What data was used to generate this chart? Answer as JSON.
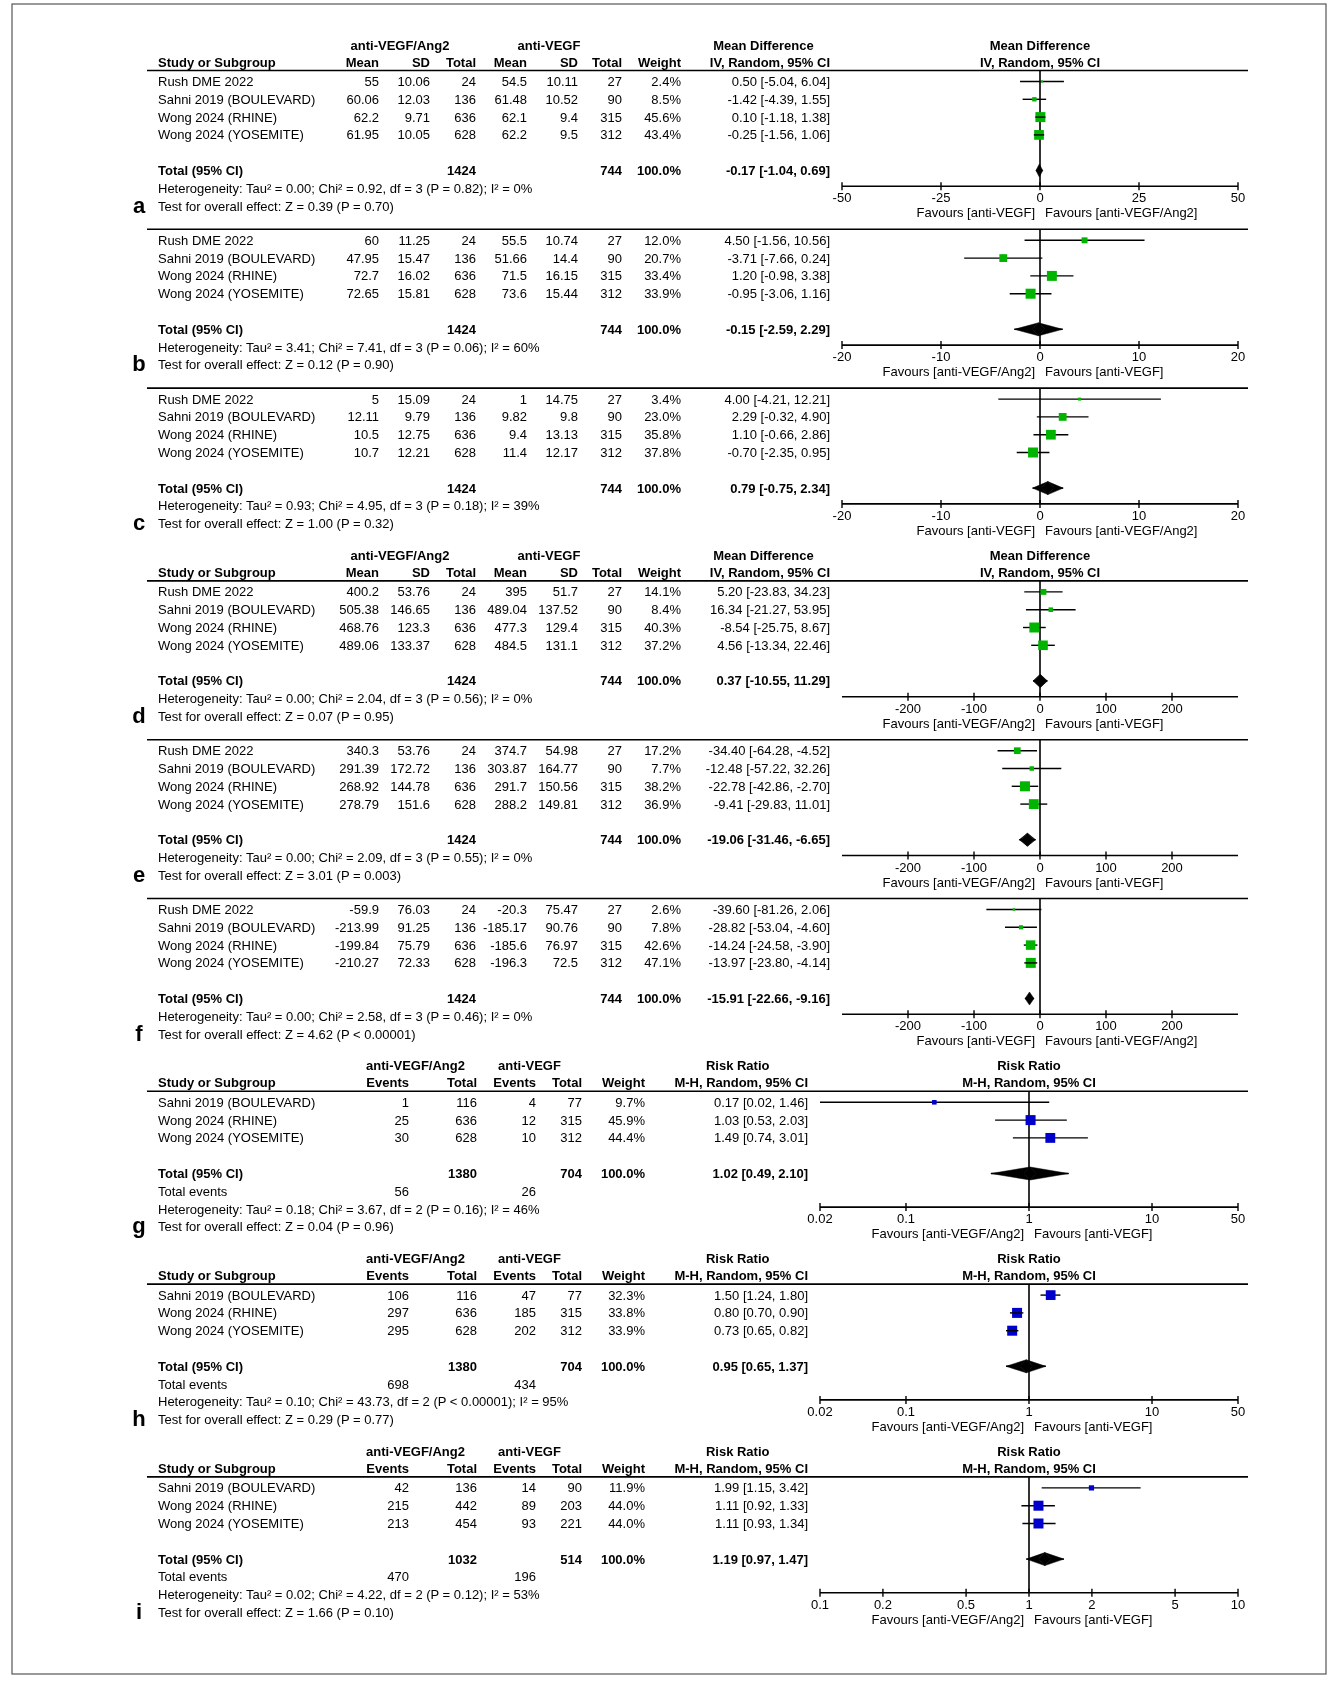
{
  "chart_data": [
    {
      "type": "other",
      "title": "a",
      "ylabel": "Study or Subgroup",
      "data_labels": true,
      "categories": [
        "Rush DME 2022",
        "Sahni 2019 (BOULEVARD)",
        "Wong 2024 (RHINE)",
        "Wong 2024 (YOSEMITE)",
        null,
        "Total (95% CI)"
      ],
      "annotations": [
        "anti-VEGF/Ang2",
        "anti-VEGF",
        "Mean Difference",
        "Heterogeneity: Tau² = 0.00; Chi² = 0.92, df = 3 (P = 0.82); I² = 0%",
        "Test for overall effect: Z = 0.39 (P = 0.70)"
      ],
      "series": [
        {
          "name": "Mean",
          "values": [
            55,
            60.06,
            62.2,
            61.95,
            null,
            null
          ]
        },
        {
          "name": "SD",
          "values": [
            10.06,
            12.03,
            9.71,
            10.05,
            null,
            null
          ]
        },
        {
          "name": "Total",
          "values": [
            24,
            136,
            636,
            628,
            null,
            1424
          ]
        },
        {
          "name": "Mean",
          "values": [
            54.5,
            61.48,
            62.1,
            62.2,
            null,
            null
          ]
        },
        {
          "name": "SD",
          "values": [
            10.11,
            10.52,
            9.4,
            9.5,
            null,
            null
          ]
        },
        {
          "name": "Total",
          "values": [
            27,
            90,
            315,
            312,
            null,
            744
          ]
        },
        {
          "name": "Weight",
          "values": [
            2.4,
            8.5,
            45.6,
            43.4,
            null,
            100
          ],
          "value_labels": [
            "2.4%",
            "8.5%",
            "45.6%",
            "43.4%",
            null,
            "100.0%"
          ]
        },
        {
          "name": "IV, Random, 95% CI",
          "values": [
            0.5,
            -1.42,
            0.1,
            -0.25,
            null,
            -0.17
          ],
          "value_labels": [
            "0.50 [-5.04, 6.04]",
            "-1.42 [-4.39, 1.55]",
            "0.10 [-1.18, 1.38]",
            "-0.25 [-1.56, 1.06]",
            null,
            "-0.17 [-1.04, 0.69]"
          ]
        }
      ]
    },
    {
      "type": "scatter",
      "orientation": "horizontal",
      "title": "Mean Difference",
      "subtitle": "IV, Random, 95% CI",
      "categories": [
        null,
        null,
        null,
        null,
        null,
        null
      ],
      "tick_labels": "x",
      "xlim": [
        -50,
        50
      ],
      "xticks": [
        -50,
        -25,
        0,
        25,
        50
      ],
      "ref_lines": [
        {
          "axis": "x",
          "value": 0
        }
      ],
      "annotations": [
        "Favours [anti-VEGF]",
        "Favours [anti-VEGF/Ang2]"
      ],
      "series": [
        {
          "type": "bubble",
          "marker": "square",
          "color": "#00b400",
          "values": [
            0.5,
            -1.42,
            0.1,
            -0.25,
            null,
            null
          ],
          "errors": [
            [
              -5.04,
              6.04
            ],
            [
              -4.39,
              1.55
            ],
            [
              -1.18,
              1.38
            ],
            [
              -1.56,
              1.06
            ],
            null,
            null
          ],
          "sizes": [
            0.05,
            0.19,
            1,
            0.95,
            null,
            null
          ]
        },
        {
          "type": "scatter",
          "marker": "diamond",
          "color": "#000000",
          "values": [
            null,
            null,
            null,
            null,
            null,
            -0.17
          ],
          "errors": [
            null,
            null,
            null,
            null,
            null,
            [
              -1.04,
              0.69
            ]
          ]
        }
      ]
    },
    {
      "type": "other",
      "title": "b",
      "data_labels": true,
      "categories": [
        "Rush DME 2022",
        "Sahni 2019 (BOULEVARD)",
        "Wong 2024 (RHINE)",
        "Wong 2024 (YOSEMITE)",
        null,
        "Total (95% CI)"
      ],
      "annotations": [
        "Heterogeneity: Tau² = 3.41; Chi² = 7.41, df = 3 (P = 0.06); I² = 60%",
        "Test for overall effect: Z = 0.12 (P = 0.90)"
      ],
      "series": [
        {
          "values": [
            60,
            47.95,
            72.7,
            72.65,
            null,
            null
          ]
        },
        {
          "values": [
            11.25,
            15.47,
            16.02,
            15.81,
            null,
            null
          ]
        },
        {
          "values": [
            24,
            136,
            636,
            628,
            null,
            1424
          ]
        },
        {
          "values": [
            55.5,
            51.66,
            71.5,
            73.6,
            null,
            null
          ]
        },
        {
          "values": [
            10.74,
            14.4,
            16.15,
            15.44,
            null,
            null
          ]
        },
        {
          "values": [
            27,
            90,
            315,
            312,
            null,
            744
          ]
        },
        {
          "values": [
            12,
            20.7,
            33.4,
            33.9,
            null,
            100
          ],
          "value_labels": [
            "12.0%",
            "20.7%",
            "33.4%",
            "33.9%",
            null,
            "100.0%"
          ]
        },
        {
          "values": [
            4.5,
            -3.71,
            1.2,
            -0.95,
            null,
            -0.15
          ],
          "value_labels": [
            "4.50 [-1.56, 10.56]",
            "-3.71 [-7.66, 0.24]",
            "1.20 [-0.98, 3.38]",
            "-0.95 [-3.06, 1.16]",
            null,
            "-0.15 [-2.59, 2.29]"
          ]
        }
      ]
    },
    {
      "type": "scatter",
      "orientation": "horizontal",
      "categories": [
        null,
        null,
        null,
        null,
        null,
        null
      ],
      "tick_labels": "x",
      "xlim": [
        -20,
        20
      ],
      "xticks": [
        -20,
        -10,
        0,
        10,
        20
      ],
      "ref_lines": [
        {
          "axis": "x",
          "value": 0
        }
      ],
      "annotations": [
        "Favours [anti-VEGF/Ang2]",
        "Favours [anti-VEGF]"
      ],
      "series": [
        {
          "type": "bubble",
          "marker": "square",
          "color": "#00b400",
          "values": [
            4.5,
            -3.71,
            1.2,
            -0.95,
            null,
            null
          ],
          "errors": [
            [
              -1.56,
              10.56
            ],
            [
              -7.66,
              0.24
            ],
            [
              -0.98,
              3.38
            ],
            [
              -3.06,
              1.16
            ],
            null,
            null
          ],
          "sizes": [
            0.35,
            0.61,
            0.99,
            1,
            null,
            null
          ]
        },
        {
          "type": "scatter",
          "marker": "diamond",
          "color": "#000000",
          "values": [
            null,
            null,
            null,
            null,
            null,
            -0.15
          ],
          "errors": [
            null,
            null,
            null,
            null,
            null,
            [
              -2.59,
              2.29
            ]
          ]
        }
      ]
    },
    {
      "type": "other",
      "title": "c",
      "data_labels": true,
      "categories": [
        "Rush DME 2022",
        "Sahni 2019 (BOULEVARD)",
        "Wong 2024 (RHINE)",
        "Wong 2024 (YOSEMITE)",
        null,
        "Total (95% CI)"
      ],
      "annotations": [
        "Heterogeneity: Tau² = 0.93; Chi² = 4.95, df = 3 (P = 0.18); I² = 39%",
        "Test for overall effect: Z = 1.00 (P = 0.32)"
      ],
      "series": [
        {
          "values": [
            5,
            12.11,
            10.5,
            10.7,
            null,
            null
          ]
        },
        {
          "values": [
            15.09,
            9.79,
            12.75,
            12.21,
            null,
            null
          ]
        },
        {
          "values": [
            24,
            136,
            636,
            628,
            null,
            1424
          ]
        },
        {
          "values": [
            1,
            9.82,
            9.4,
            11.4,
            null,
            null
          ]
        },
        {
          "values": [
            14.75,
            9.8,
            13.13,
            12.17,
            null,
            null
          ]
        },
        {
          "values": [
            27,
            90,
            315,
            312,
            null,
            744
          ]
        },
        {
          "values": [
            3.4,
            23,
            35.8,
            37.8,
            null,
            100
          ],
          "value_labels": [
            "3.4%",
            "23.0%",
            "35.8%",
            "37.8%",
            null,
            "100.0%"
          ]
        },
        {
          "values": [
            4,
            2.29,
            1.1,
            -0.7,
            null,
            0.79
          ],
          "value_labels": [
            "4.00 [-4.21, 12.21]",
            "2.29 [-0.32, 4.90]",
            "1.10 [-0.66, 2.86]",
            "-0.70 [-2.35, 0.95]",
            null,
            "0.79 [-0.75, 2.34]"
          ]
        }
      ]
    },
    {
      "type": "scatter",
      "orientation": "horizontal",
      "categories": [
        null,
        null,
        null,
        null,
        null,
        null
      ],
      "tick_labels": "x",
      "xlim": [
        -20,
        20
      ],
      "xticks": [
        -20,
        -10,
        0,
        10,
        20
      ],
      "ref_lines": [
        {
          "axis": "x",
          "value": 0
        }
      ],
      "annotations": [
        "Favours [anti-VEGF]",
        "Favours [anti-VEGF/Ang2]"
      ],
      "series": [
        {
          "type": "bubble",
          "marker": "square",
          "color": "#00b400",
          "values": [
            4,
            2.29,
            1.1,
            -0.7,
            null,
            null
          ],
          "errors": [
            [
              -4.21,
              12.21
            ],
            [
              -0.32,
              4.9
            ],
            [
              -0.66,
              2.86
            ],
            [
              -2.35,
              0.95
            ],
            null,
            null
          ],
          "sizes": [
            0.09,
            0.61,
            0.95,
            1,
            null,
            null
          ]
        },
        {
          "type": "scatter",
          "marker": "diamond",
          "color": "#000000",
          "values": [
            null,
            null,
            null,
            null,
            null,
            0.79
          ],
          "errors": [
            null,
            null,
            null,
            null,
            null,
            [
              -0.75,
              2.34
            ]
          ]
        }
      ]
    },
    {
      "type": "other",
      "title": "d",
      "ylabel": "Study or Subgroup",
      "data_labels": true,
      "categories": [
        "Rush DME 2022",
        "Sahni 2019 (BOULEVARD)",
        "Wong 2024 (RHINE)",
        "Wong 2024 (YOSEMITE)",
        null,
        "Total (95% CI)"
      ],
      "annotations": [
        "anti-VEGF/Ang2",
        "anti-VEGF",
        "Mean Difference",
        "Heterogeneity: Tau² = 0.00; Chi² = 2.04, df = 3 (P = 0.56); I² = 0%",
        "Test for overall effect: Z = 0.07 (P = 0.95)"
      ],
      "series": [
        {
          "name": "Mean",
          "values": [
            400.2,
            505.38,
            468.76,
            489.06,
            null,
            null
          ]
        },
        {
          "name": "SD",
          "values": [
            53.76,
            146.65,
            123.3,
            133.37,
            null,
            null
          ]
        },
        {
          "name": "Total",
          "values": [
            24,
            136,
            636,
            628,
            null,
            1424
          ]
        },
        {
          "name": "Mean",
          "values": [
            395,
            489.04,
            477.3,
            484.5,
            null,
            null
          ]
        },
        {
          "name": "SD",
          "values": [
            51.7,
            137.52,
            129.4,
            131.1,
            null,
            null
          ]
        },
        {
          "name": "Total",
          "values": [
            27,
            90,
            315,
            312,
            null,
            744
          ]
        },
        {
          "name": "Weight",
          "values": [
            14.1,
            8.4,
            40.3,
            37.2,
            null,
            100
          ],
          "value_labels": [
            "14.1%",
            "8.4%",
            "40.3%",
            "37.2%",
            null,
            "100.0%"
          ]
        },
        {
          "name": "IV, Random, 95% CI",
          "values": [
            5.2,
            16.34,
            -8.54,
            4.56,
            null,
            0.37
          ],
          "value_labels": [
            "5.20 [-23.83, 34.23]",
            "16.34 [-21.27, 53.95]",
            "-8.54 [-25.75, 8.67]",
            "4.56 [-13.34, 22.46]",
            null,
            "0.37 [-10.55, 11.29]"
          ]
        }
      ]
    },
    {
      "type": "scatter",
      "orientation": "horizontal",
      "title": "Mean Difference",
      "subtitle": "IV, Random, 95% CI",
      "categories": [
        null,
        null,
        null,
        null,
        null,
        null
      ],
      "tick_labels": "x",
      "xlim": [
        -300,
        300
      ],
      "xticks": [
        -200,
        -100,
        0,
        100,
        200
      ],
      "ref_lines": [
        {
          "axis": "x",
          "value": 0
        }
      ],
      "annotations": [
        "Favours [anti-VEGF/Ang2]",
        "Favours [anti-VEGF]"
      ],
      "series": [
        {
          "type": "bubble",
          "marker": "square",
          "color": "#00b400",
          "values": [
            5.2,
            16.34,
            -8.54,
            4.56,
            null,
            null
          ],
          "errors": [
            [
              -23.83,
              34.23
            ],
            [
              -21.27,
              53.95
            ],
            [
              -25.75,
              8.67
            ],
            [
              -13.34,
              22.46
            ],
            null,
            null
          ],
          "sizes": [
            0.35,
            0.21,
            1,
            0.92,
            null,
            null
          ]
        },
        {
          "type": "scatter",
          "marker": "diamond",
          "color": "#000000",
          "values": [
            null,
            null,
            null,
            null,
            null,
            0.37
          ],
          "errors": [
            null,
            null,
            null,
            null,
            null,
            [
              -10.55,
              11.29
            ]
          ]
        }
      ]
    },
    {
      "type": "other",
      "title": "e",
      "data_labels": true,
      "categories": [
        "Rush DME 2022",
        "Sahni 2019 (BOULEVARD)",
        "Wong 2024 (RHINE)",
        "Wong 2024 (YOSEMITE)",
        null,
        "Total (95% CI)"
      ],
      "annotations": [
        "Heterogeneity: Tau² = 0.00; Chi² = 2.09, df = 3 (P = 0.55); I² = 0%",
        "Test for overall effect: Z = 3.01 (P = 0.003)"
      ],
      "series": [
        {
          "values": [
            340.3,
            291.39,
            268.92,
            278.79,
            null,
            null
          ]
        },
        {
          "values": [
            53.76,
            172.72,
            144.78,
            151.6,
            null,
            null
          ]
        },
        {
          "values": [
            24,
            136,
            636,
            628,
            null,
            1424
          ]
        },
        {
          "values": [
            374.7,
            303.87,
            291.7,
            288.2,
            null,
            null
          ]
        },
        {
          "values": [
            54.98,
            164.77,
            150.56,
            149.81,
            null,
            null
          ]
        },
        {
          "values": [
            27,
            90,
            315,
            312,
            null,
            744
          ]
        },
        {
          "values": [
            17.2,
            7.7,
            38.2,
            36.9,
            null,
            100
          ],
          "value_labels": [
            "17.2%",
            "7.7%",
            "38.2%",
            "36.9%",
            null,
            "100.0%"
          ]
        },
        {
          "values": [
            -34.4,
            -12.48,
            -22.78,
            -9.41,
            null,
            -19.06
          ],
          "value_labels": [
            "-34.40 [-64.28, -4.52]",
            "-12.48 [-57.22, 32.26]",
            "-22.78 [-42.86, -2.70]",
            "-9.41 [-29.83, 11.01]",
            null,
            "-19.06 [-31.46, -6.65]"
          ]
        }
      ]
    },
    {
      "type": "scatter",
      "orientation": "horizontal",
      "categories": [
        null,
        null,
        null,
        null,
        null,
        null
      ],
      "tick_labels": "x",
      "xlim": [
        -300,
        300
      ],
      "xticks": [
        -200,
        -100,
        0,
        100,
        200
      ],
      "ref_lines": [
        {
          "axis": "x",
          "value": 0
        }
      ],
      "annotations": [
        "Favours [anti-VEGF/Ang2]",
        "Favours [anti-VEGF]"
      ],
      "series": [
        {
          "type": "bubble",
          "marker": "square",
          "color": "#00b400",
          "values": [
            -34.4,
            -12.48,
            -22.78,
            -9.41,
            null,
            null
          ],
          "errors": [
            [
              -64.28,
              -4.52
            ],
            [
              -57.22,
              32.26
            ],
            [
              -42.86,
              -2.7
            ],
            [
              -29.83,
              11.01
            ],
            null,
            null
          ],
          "sizes": [
            0.45,
            0.2,
            1,
            0.97,
            null,
            null
          ]
        },
        {
          "type": "scatter",
          "marker": "diamond",
          "color": "#000000",
          "values": [
            null,
            null,
            null,
            null,
            null,
            -19.06
          ],
          "errors": [
            null,
            null,
            null,
            null,
            null,
            [
              -31.46,
              -6.65
            ]
          ]
        }
      ]
    },
    {
      "type": "other",
      "title": "f",
      "data_labels": true,
      "categories": [
        "Rush DME 2022",
        "Sahni 2019 (BOULEVARD)",
        "Wong 2024 (RHINE)",
        "Wong 2024 (YOSEMITE)",
        null,
        "Total (95% CI)"
      ],
      "annotations": [
        "Heterogeneity: Tau² = 0.00; Chi² = 2.58, df = 3 (P = 0.46); I² = 0%",
        "Test for overall effect: Z = 4.62 (P < 0.00001)"
      ],
      "series": [
        {
          "values": [
            -59.9,
            -213.99,
            -199.84,
            -210.27,
            null,
            null
          ]
        },
        {
          "values": [
            76.03,
            91.25,
            75.79,
            72.33,
            null,
            null
          ]
        },
        {
          "values": [
            24,
            136,
            636,
            628,
            null,
            1424
          ]
        },
        {
          "values": [
            -20.3,
            -185.17,
            -185.6,
            -196.3,
            null,
            null
          ]
        },
        {
          "values": [
            75.47,
            90.76,
            76.97,
            72.5,
            null,
            null
          ]
        },
        {
          "values": [
            27,
            90,
            315,
            312,
            null,
            744
          ]
        },
        {
          "values": [
            2.6,
            7.8,
            42.6,
            47.1,
            null,
            100
          ],
          "value_labels": [
            "2.6%",
            "7.8%",
            "42.6%",
            "47.1%",
            null,
            "100.0%"
          ]
        },
        {
          "values": [
            -39.6,
            -28.82,
            -14.24,
            -13.97,
            null,
            -15.91
          ],
          "value_labels": [
            "-39.60 [-81.26, 2.06]",
            "-28.82 [-53.04, -4.60]",
            "-14.24 [-24.58, -3.90]",
            "-13.97 [-23.80, -4.14]",
            null,
            "-15.91 [-22.66, -9.16]"
          ]
        }
      ]
    },
    {
      "type": "scatter",
      "orientation": "horizontal",
      "categories": [
        null,
        null,
        null,
        null,
        null,
        null
      ],
      "tick_labels": "x",
      "xlim": [
        -300,
        300
      ],
      "xticks": [
        -200,
        -100,
        0,
        100,
        200
      ],
      "ref_lines": [
        {
          "axis": "x",
          "value": 0
        }
      ],
      "annotations": [
        "Favours [anti-VEGF]",
        "Favours [anti-VEGF/Ang2]"
      ],
      "series": [
        {
          "type": "bubble",
          "marker": "square",
          "color": "#00b400",
          "values": [
            -39.6,
            -28.82,
            -14.24,
            -13.97,
            null,
            null
          ],
          "errors": [
            [
              -81.26,
              2.06
            ],
            [
              -53.04,
              -4.6
            ],
            [
              -24.58,
              -3.9
            ],
            [
              -23.8,
              -4.14
            ],
            null,
            null
          ],
          "sizes": [
            0.06,
            0.17,
            0.9,
            1,
            null,
            null
          ]
        },
        {
          "type": "scatter",
          "marker": "diamond",
          "color": "#000000",
          "values": [
            null,
            null,
            null,
            null,
            null,
            -15.91
          ],
          "errors": [
            null,
            null,
            null,
            null,
            null,
            [
              -22.66,
              -9.16
            ]
          ]
        }
      ]
    },
    {
      "type": "other",
      "title": "g",
      "ylabel": "Study or Subgroup",
      "data_labels": true,
      "categories": [
        "Sahni 2019 (BOULEVARD)",
        "Wong 2024 (RHINE)",
        "Wong 2024 (YOSEMITE)",
        null,
        "Total (95% CI)",
        "Total events"
      ],
      "annotations": [
        "anti-VEGF/Ang2",
        "anti-VEGF",
        "Risk Ratio",
        "Heterogeneity: Tau² = 0.18; Chi² = 3.67, df = 2 (P = 0.16); I² = 46%",
        "Test for overall effect: Z = 0.04 (P = 0.96)"
      ],
      "series": [
        {
          "name": "Events",
          "values": [
            1,
            25,
            30,
            null,
            null,
            56
          ]
        },
        {
          "name": "Total",
          "values": [
            116,
            636,
            628,
            null,
            1380,
            null
          ]
        },
        {
          "name": "Events",
          "values": [
            4,
            12,
            10,
            null,
            null,
            26
          ]
        },
        {
          "name": "Total",
          "values": [
            77,
            315,
            312,
            null,
            704,
            null
          ]
        },
        {
          "name": "Weight",
          "values": [
            9.7,
            45.9,
            44.4,
            null,
            100,
            null
          ],
          "value_labels": [
            "9.7%",
            "45.9%",
            "44.4%",
            null,
            "100.0%",
            null
          ]
        },
        {
          "name": "M-H, Random, 95% CI",
          "values": [
            0.17,
            1.03,
            1.49,
            null,
            1.02,
            null
          ],
          "value_labels": [
            "0.17 [0.02, 1.46]",
            "1.03 [0.53, 2.03]",
            "1.49 [0.74, 3.01]",
            null,
            "1.02 [0.49, 2.10]",
            null
          ]
        }
      ]
    },
    {
      "type": "scatter",
      "orientation": "horizontal",
      "title": "Risk Ratio",
      "subtitle": "M-H, Random, 95% CI",
      "categories": [
        null,
        null,
        null,
        null,
        null,
        null
      ],
      "tick_labels": "x",
      "log": "x",
      "xlim": [
        0.02,
        50
      ],
      "xticks": [
        0.02,
        0.1,
        1,
        10,
        50
      ],
      "ref_lines": [
        {
          "axis": "x",
          "value": 1
        }
      ],
      "annotations": [
        "Favours [anti-VEGF/Ang2]",
        "Favours [anti-VEGF]"
      ],
      "series": [
        {
          "type": "bubble",
          "marker": "square",
          "color": "#0000cc",
          "values": [
            0.17,
            1.03,
            1.49,
            null,
            null,
            null
          ],
          "errors": [
            [
              0.02,
              1.46
            ],
            [
              0.53,
              2.03
            ],
            [
              0.74,
              3.01
            ],
            null,
            null,
            null
          ],
          "sizes": [
            0.21,
            1,
            0.97,
            null,
            null,
            null
          ]
        },
        {
          "type": "scatter",
          "marker": "diamond",
          "color": "#000000",
          "values": [
            null,
            null,
            null,
            null,
            1.02,
            null
          ],
          "errors": [
            null,
            null,
            null,
            null,
            [
              0.49,
              2.1
            ],
            null
          ]
        }
      ]
    },
    {
      "type": "other",
      "title": "h",
      "ylabel": "Study or Subgroup",
      "data_labels": true,
      "categories": [
        "Sahni 2019 (BOULEVARD)",
        "Wong 2024 (RHINE)",
        "Wong 2024 (YOSEMITE)",
        null,
        "Total (95% CI)",
        "Total events"
      ],
      "annotations": [
        "anti-VEGF/Ang2",
        "anti-VEGF",
        "Risk Ratio",
        "Heterogeneity: Tau² = 0.10; Chi² = 43.73, df = 2 (P < 0.00001); I² = 95%",
        "Test for overall effect: Z = 0.29 (P = 0.77)"
      ],
      "series": [
        {
          "name": "Events",
          "values": [
            106,
            297,
            295,
            null,
            null,
            698
          ]
        },
        {
          "name": "Total",
          "values": [
            116,
            636,
            628,
            null,
            1380,
            null
          ]
        },
        {
          "name": "Events",
          "values": [
            47,
            185,
            202,
            null,
            null,
            434
          ]
        },
        {
          "name": "Total",
          "values": [
            77,
            315,
            312,
            null,
            704,
            null
          ]
        },
        {
          "name": "Weight",
          "values": [
            32.3,
            33.8,
            33.9,
            null,
            100,
            null
          ],
          "value_labels": [
            "32.3%",
            "33.8%",
            "33.9%",
            null,
            "100.0%",
            null
          ]
        },
        {
          "name": "M-H, Random, 95% CI",
          "values": [
            1.5,
            0.8,
            0.73,
            null,
            0.95,
            null
          ],
          "value_labels": [
            "1.50 [1.24, 1.80]",
            "0.80 [0.70, 0.90]",
            "0.73 [0.65, 0.82]",
            null,
            "0.95 [0.65, 1.37]",
            null
          ]
        }
      ]
    },
    {
      "type": "scatter",
      "orientation": "horizontal",
      "title": "Risk Ratio",
      "subtitle": "M-H, Random, 95% CI",
      "categories": [
        null,
        null,
        null,
        null,
        null,
        null
      ],
      "tick_labels": "x",
      "log": "x",
      "xlim": [
        0.02,
        50
      ],
      "xticks": [
        0.02,
        0.1,
        1,
        10,
        50
      ],
      "ref_lines": [
        {
          "axis": "x",
          "value": 1
        }
      ],
      "annotations": [
        "Favours [anti-VEGF/Ang2]",
        "Favours [anti-VEGF]"
      ],
      "series": [
        {
          "type": "bubble",
          "marker": "square",
          "color": "#0000cc",
          "values": [
            1.5,
            0.8,
            0.73,
            null,
            null,
            null
          ],
          "errors": [
            [
              1.24,
              1.8
            ],
            [
              0.7,
              0.9
            ],
            [
              0.65,
              0.82
            ],
            null,
            null,
            null
          ],
          "sizes": [
            0.95,
            1,
            1,
            null,
            null,
            null
          ]
        },
        {
          "type": "scatter",
          "marker": "diamond",
          "color": "#000000",
          "values": [
            null,
            null,
            null,
            null,
            0.95,
            null
          ],
          "errors": [
            null,
            null,
            null,
            null,
            [
              0.65,
              1.37
            ],
            null
          ]
        }
      ]
    },
    {
      "type": "other",
      "title": "i",
      "ylabel": "Study or Subgroup",
      "data_labels": true,
      "categories": [
        "Sahni 2019 (BOULEVARD)",
        "Wong 2024 (RHINE)",
        "Wong 2024 (YOSEMITE)",
        null,
        "Total (95% CI)",
        "Total events"
      ],
      "annotations": [
        "anti-VEGF/Ang2",
        "anti-VEGF",
        "Risk Ratio",
        "Heterogeneity: Tau² = 0.02; Chi² = 4.22, df = 2 (P = 0.12); I² = 53%",
        "Test for overall effect: Z = 1.66 (P = 0.10)"
      ],
      "series": [
        {
          "name": "Events",
          "values": [
            42,
            215,
            213,
            null,
            null,
            470
          ]
        },
        {
          "name": "Total",
          "values": [
            136,
            442,
            454,
            null,
            1032,
            null
          ]
        },
        {
          "name": "Events",
          "values": [
            14,
            89,
            93,
            null,
            null,
            196
          ]
        },
        {
          "name": "Total",
          "values": [
            90,
            203,
            221,
            null,
            514,
            null
          ]
        },
        {
          "name": "Weight",
          "values": [
            11.9,
            44,
            44,
            null,
            100,
            null
          ],
          "value_labels": [
            "11.9%",
            "44.0%",
            "44.0%",
            null,
            "100.0%",
            null
          ]
        },
        {
          "name": "M-H, Random, 95% CI",
          "values": [
            1.99,
            1.11,
            1.11,
            null,
            1.19,
            null
          ],
          "value_labels": [
            "1.99 [1.15, 3.42]",
            "1.11 [0.92, 1.33]",
            "1.11 [0.93, 1.34]",
            null,
            "1.19 [0.97, 1.47]",
            null
          ]
        }
      ]
    },
    {
      "type": "scatter",
      "orientation": "horizontal",
      "title": "Risk Ratio",
      "subtitle": "M-H, Random, 95% CI",
      "categories": [
        null,
        null,
        null,
        null,
        null,
        null
      ],
      "tick_labels": "x",
      "log": "x",
      "xlim": [
        0.1,
        10
      ],
      "xticks": [
        0.1,
        0.2,
        0.5,
        1,
        2,
        5,
        10
      ],
      "ref_lines": [
        {
          "axis": "x",
          "value": 1
        }
      ],
      "annotations": [
        "Favours [anti-VEGF/Ang2]",
        "Favours [anti-VEGF]"
      ],
      "series": [
        {
          "type": "bubble",
          "marker": "square",
          "color": "#0000cc",
          "values": [
            1.99,
            1.11,
            1.11,
            null,
            null,
            null
          ],
          "errors": [
            [
              1.15,
              3.42
            ],
            [
              0.92,
              1.33
            ],
            [
              0.93,
              1.34
            ],
            null,
            null,
            null
          ],
          "sizes": [
            0.27,
            1,
            1,
            null,
            null,
            null
          ]
        },
        {
          "type": "scatter",
          "marker": "diamond",
          "color": "#000000",
          "values": [
            null,
            null,
            null,
            null,
            1.19,
            null
          ],
          "errors": [
            null,
            null,
            null,
            null,
            [
              0.97,
              1.47
            ],
            null
          ]
        }
      ]
    }
  ]
}
